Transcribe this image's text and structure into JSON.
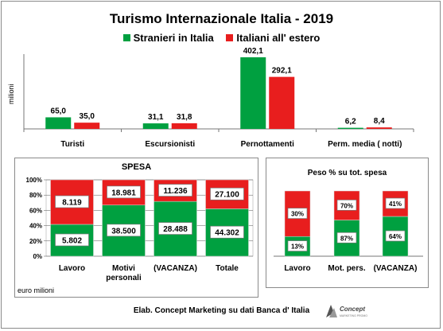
{
  "chart_data": [
    {
      "type": "bar",
      "title": "Turismo Internazionale  Italia - 2019",
      "ylabel": "milioni",
      "categories": [
        "Turisti",
        "Escursionisti",
        "Pernottamenti",
        "Perm. media ( notti)"
      ],
      "series": [
        {
          "name": "Stranieri in Italia",
          "values": [
            65.0,
            31.1,
            402.1,
            6.2
          ],
          "labels": [
            "65,0",
            "31,1",
            "402,1",
            "6,2"
          ],
          "color": "#00a040"
        },
        {
          "name": "Italiani all' estero",
          "values": [
            35.0,
            31.8,
            292.1,
            8.4
          ],
          "labels": [
            "35,0",
            "31,8",
            "292,1",
            "8,4"
          ],
          "color": "#e81e1e"
        }
      ],
      "ylim": [
        0,
        420
      ],
      "grid": false,
      "legend": "top"
    },
    {
      "type": "bar",
      "stacked": "percent",
      "title": "SPESA",
      "ylabel": "euro milioni",
      "categories": [
        "Lavoro",
        "Motivi personali",
        "(VACANZA)",
        "Totale"
      ],
      "series": [
        {
          "name": "Stranieri in Italia",
          "values": [
            5802,
            38500,
            28488,
            44302
          ],
          "labels": [
            "5.802",
            "38.500",
            "28.488",
            "44.302"
          ],
          "color": "#00a040"
        },
        {
          "name": "Italiani all' estero",
          "values": [
            8119,
            18981,
            11236,
            27100
          ],
          "labels": [
            "8.119",
            "18.981",
            "11.236",
            "27.100"
          ],
          "color": "#e81e1e"
        }
      ],
      "yticks": [
        "0%",
        "20%",
        "40%",
        "60%",
        "80%",
        "100%"
      ],
      "ylim": [
        0,
        100
      ],
      "grid": true
    },
    {
      "type": "bar",
      "stacked": "percent",
      "title": "Peso % su tot. spesa",
      "categories": [
        "Lavoro",
        "Mot. pers.",
        "(VACANZA)"
      ],
      "series": [
        {
          "name": "Stranieri in Italia",
          "values": [
            13,
            87,
            64
          ],
          "labels": [
            "13%",
            "87%",
            "64%"
          ],
          "color": "#00a040"
        },
        {
          "name": "Italiani all' estero",
          "values": [
            30,
            70,
            41
          ],
          "labels": [
            "30%",
            "70%",
            "41%"
          ],
          "color": "#e81e1e"
        }
      ],
      "grid": false
    }
  ],
  "footer": {
    "source": "Elab. Concept Marketing su dati Banca d' Italia"
  }
}
